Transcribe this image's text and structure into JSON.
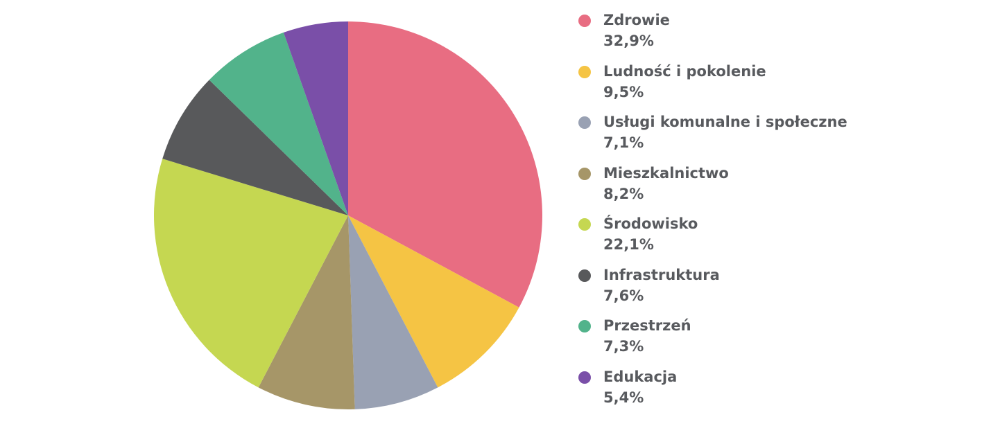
{
  "chart_data": {
    "type": "pie",
    "title": "",
    "start_angle": "top",
    "direction": "clockwise",
    "legend_position": "right",
    "slices": [
      {
        "label": "Zdrowie",
        "value": 32.9,
        "value_label": "32,9%",
        "color": "#e86d82"
      },
      {
        "label": "Ludność i pokolenie",
        "value": 9.5,
        "value_label": "9,5%",
        "color": "#f5c444"
      },
      {
        "label": "Usługi komunalne i społeczne",
        "value": 7.1,
        "value_label": "7,1%",
        "color": "#99a1b3"
      },
      {
        "label": "Mieszkalnictwo",
        "value": 8.2,
        "value_label": "8,2%",
        "color": "#a69668"
      },
      {
        "label": "Środowisko",
        "value": 22.1,
        "value_label": "22,1%",
        "color": "#c5d751"
      },
      {
        "label": "Infrastruktura",
        "value": 7.6,
        "value_label": "7,6%",
        "color": "#58595b"
      },
      {
        "label": "Przestrzeń",
        "value": 7.3,
        "value_label": "7,3%",
        "color": "#52b38b"
      },
      {
        "label": "Edukacja",
        "value": 5.4,
        "value_label": "5,4%",
        "color": "#7a4fa8"
      }
    ]
  }
}
